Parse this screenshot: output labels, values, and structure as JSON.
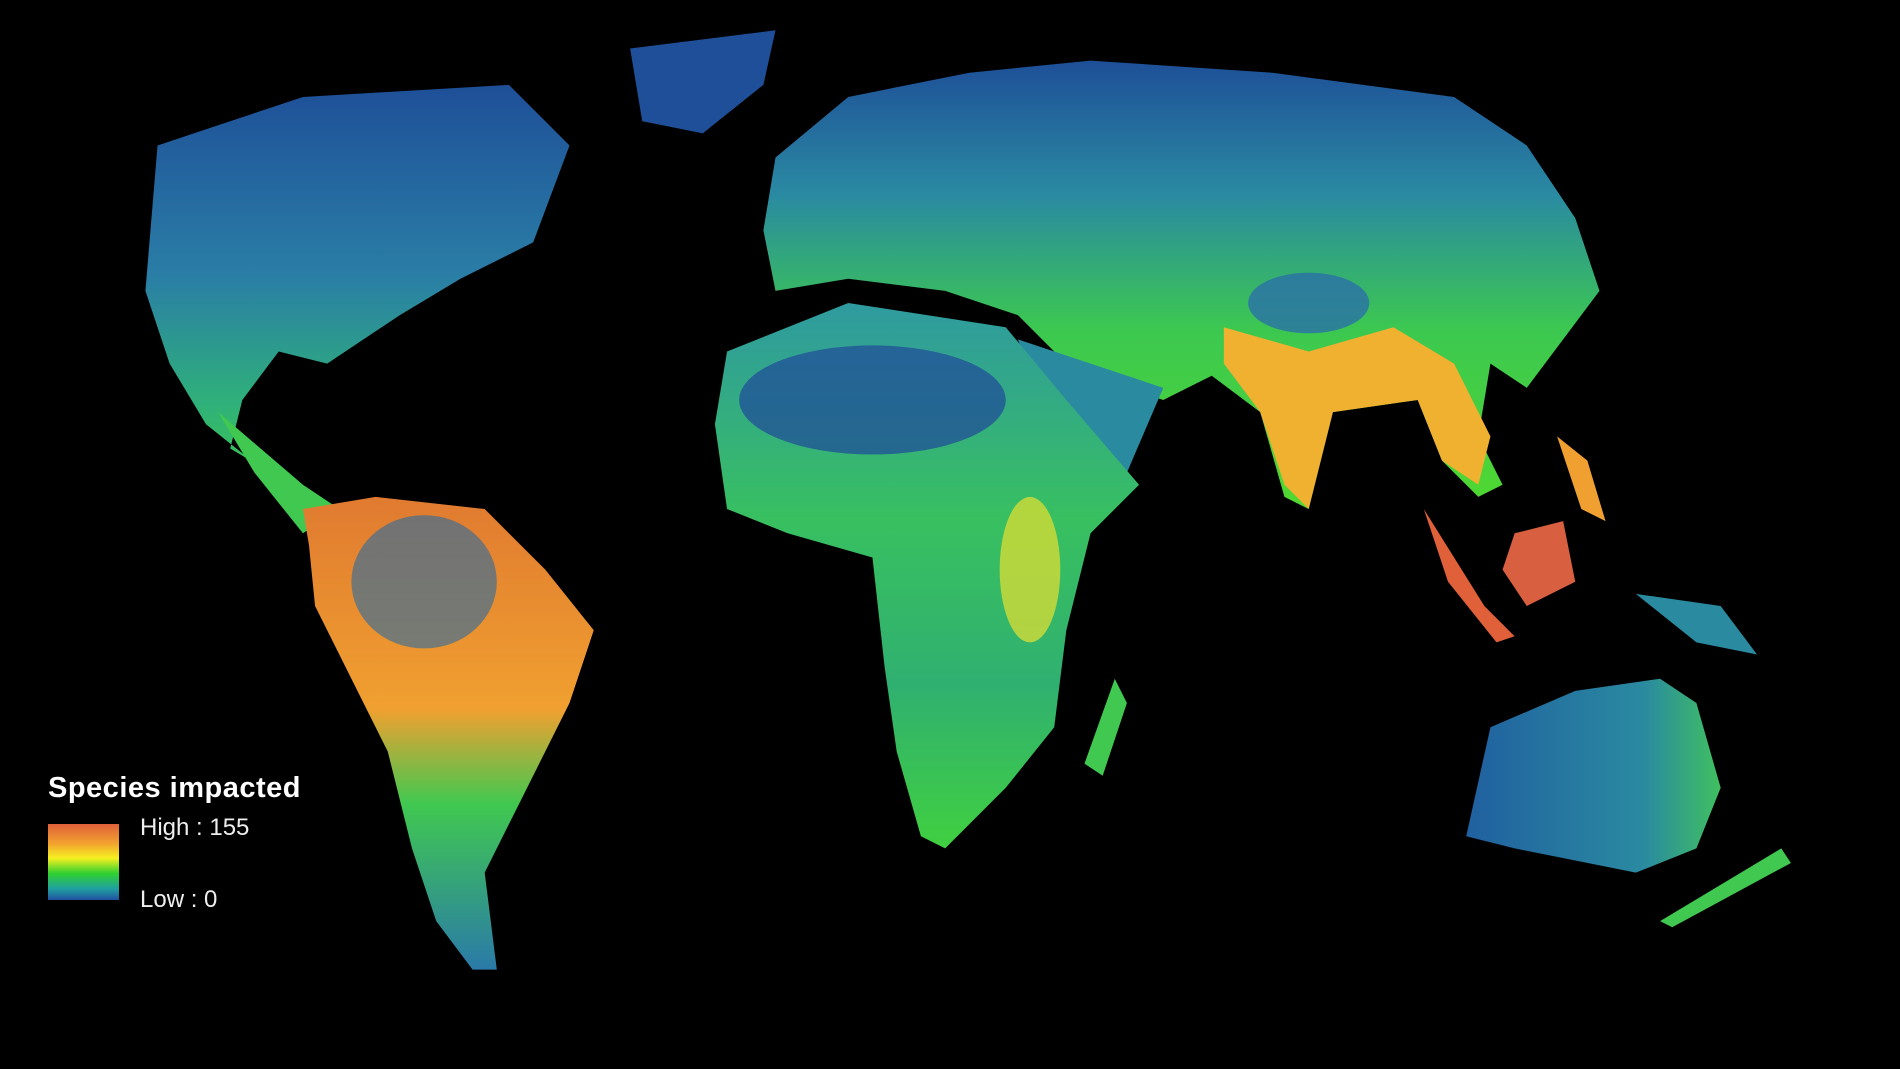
{
  "legend": {
    "title": "Species impacted",
    "high_label": "High : 155",
    "low_label": "Low : 0",
    "ramp_colors": [
      "#e0603a",
      "#f2a030",
      "#f5f020",
      "#30d030",
      "#20a0a0",
      "#2050a0"
    ]
  },
  "map": {
    "background": "#000000",
    "colors": {
      "low": "#1f4e96",
      "mid_low": "#2a9a9a",
      "mid": "#3cd23c",
      "mid_high": "#f0f020",
      "high": "#e0603a"
    }
  }
}
